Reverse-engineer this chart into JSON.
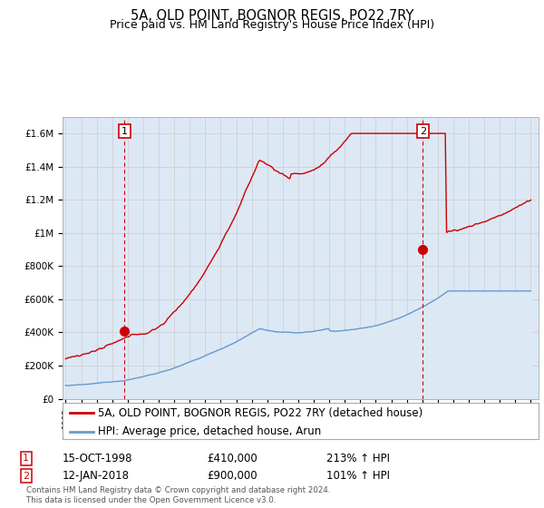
{
  "title": "5A, OLD POINT, BOGNOR REGIS, PO22 7RY",
  "subtitle": "Price paid vs. HM Land Registry's House Price Index (HPI)",
  "ylim": [
    0,
    1700000
  ],
  "xlim_start": 1994.8,
  "xlim_end": 2025.5,
  "yticks": [
    0,
    200000,
    400000,
    600000,
    800000,
    1000000,
    1200000,
    1400000,
    1600000
  ],
  "ytick_labels": [
    "£0",
    "£200K",
    "£400K",
    "£600K",
    "£800K",
    "£1M",
    "£1.2M",
    "£1.4M",
    "£1.6M"
  ],
  "red_color": "#cc0000",
  "blue_color": "#6699cc",
  "blue_fill": "#dde8f5",
  "grid_color": "#cccccc",
  "background_color": "#ffffff",
  "point1_x": 1998.79,
  "point1_y": 410000,
  "point1_label": "1",
  "point1_date": "15-OCT-1998",
  "point1_price": "£410,000",
  "point1_hpi": "213% ↑ HPI",
  "point2_x": 2018.04,
  "point2_y": 900000,
  "point2_label": "2",
  "point2_date": "12-JAN-2018",
  "point2_price": "£900,000",
  "point2_hpi": "101% ↑ HPI",
  "legend_line1": "5A, OLD POINT, BOGNOR REGIS, PO22 7RY (detached house)",
  "legend_line2": "HPI: Average price, detached house, Arun",
  "footer": "Contains HM Land Registry data © Crown copyright and database right 2024.\nThis data is licensed under the Open Government Licence v3.0.",
  "title_fontsize": 10.5,
  "subtitle_fontsize": 9,
  "axis_fontsize": 7.5,
  "legend_fontsize": 8.5,
  "table_fontsize": 8.5
}
